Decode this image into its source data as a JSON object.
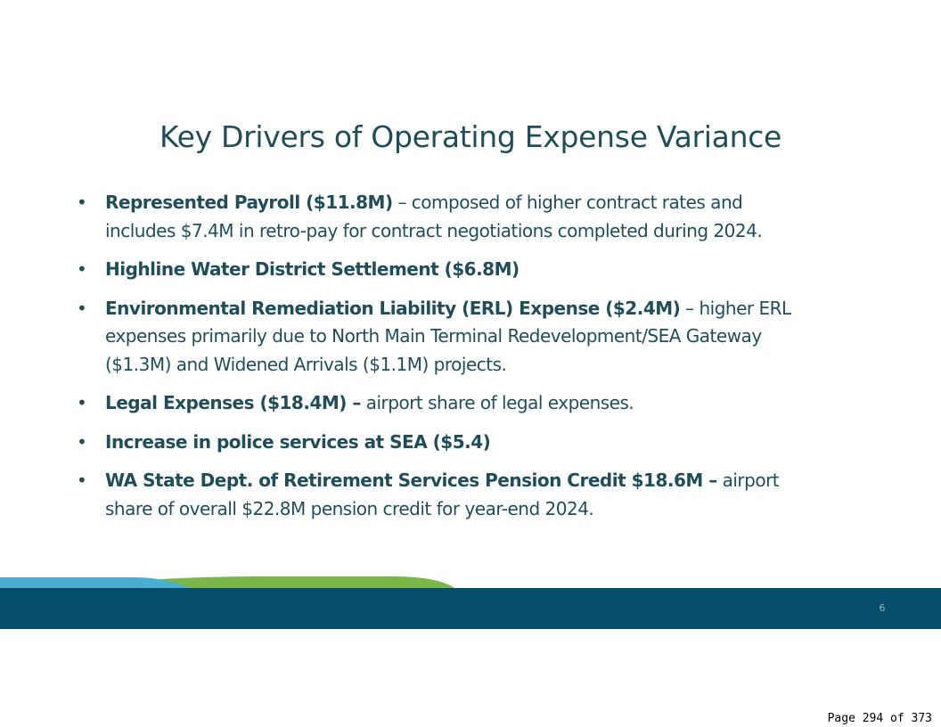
{
  "slide": {
    "title": "Key Drivers of Operating Expense Variance",
    "bullets": [
      {
        "bold": "Represented Payroll ($11.8M)",
        "text": " – composed of higher contract rates and includes $7.4M in retro-pay for contract negotiations completed during 2024."
      },
      {
        "bold": "Highline Water District Settlement ($6.8M)",
        "text": ""
      },
      {
        "bold": "Environmental Remediation Liability (ERL) Expense ($2.4M)",
        "text": " – higher ERL expenses primarily due to North Main Terminal Redevelopment/SEA Gateway ($1.3M) and Widened Arrivals ($1.1M) projects."
      },
      {
        "bold": "Legal Expenses ($18.4M) –",
        "text": " airport share of legal expenses."
      },
      {
        "bold": "Increase in police services at SEA ($5.4)",
        "text": ""
      },
      {
        "bold": "WA State Dept. of Retirement Services Pension Credit $18.6M –",
        "text": " airport share of overall $22.8M pension credit for year-end 2024."
      }
    ],
    "slide_number": "6"
  },
  "document": {
    "page_label": "Page 294 of 373"
  },
  "colors": {
    "title": "#1f4e5a",
    "footer_band": "#044e6b",
    "wave_blue": "#4aaed0",
    "wave_green": "#7ab648"
  }
}
